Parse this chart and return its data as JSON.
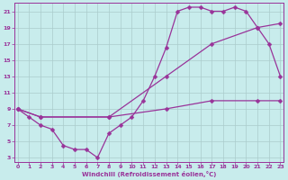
{
  "xlabel": "Windchill (Refroidissement éolien,°C)",
  "bg_color": "#c8ecec",
  "line_color": "#993399",
  "grid_color": "#aacccc",
  "xlim": [
    -0.3,
    23.3
  ],
  "ylim": [
    2.5,
    22.0
  ],
  "xticks": [
    0,
    1,
    2,
    3,
    4,
    5,
    6,
    7,
    8,
    9,
    10,
    11,
    12,
    13,
    14,
    15,
    16,
    17,
    18,
    19,
    20,
    21,
    22,
    23
  ],
  "yticks": [
    3,
    5,
    7,
    9,
    11,
    13,
    15,
    17,
    19,
    21
  ],
  "curve1_x": [
    0,
    1,
    2,
    3,
    4,
    5,
    6,
    7,
    8,
    9,
    10,
    11,
    12,
    13,
    14,
    15,
    16,
    17,
    18,
    19,
    20,
    21,
    22,
    23
  ],
  "curve1_y": [
    9,
    8,
    7,
    6.5,
    4.5,
    4,
    4,
    3,
    6,
    7,
    8,
    10,
    13,
    16.5,
    21,
    21.5,
    21.5,
    21,
    21,
    21.5,
    21,
    19,
    17,
    13
  ],
  "curve2_x": [
    0,
    2,
    8,
    13,
    17,
    21,
    23
  ],
  "curve2_y": [
    9,
    8,
    8,
    13,
    17,
    19,
    19.5
  ],
  "curve3_x": [
    0,
    2,
    8,
    13,
    17,
    21,
    23
  ],
  "curve3_y": [
    9,
    8,
    8,
    9,
    10,
    10,
    10
  ]
}
